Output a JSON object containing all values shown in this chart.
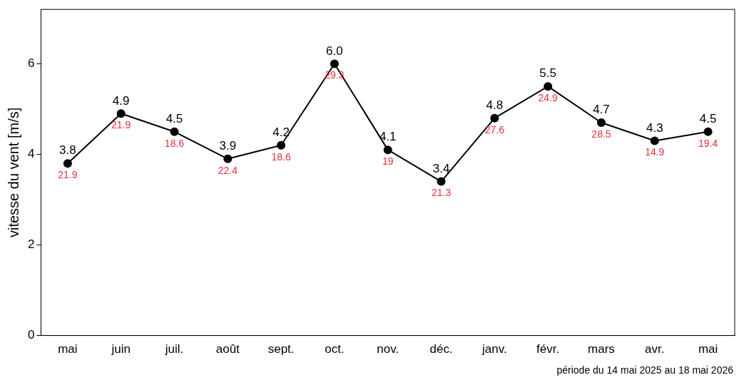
{
  "chart_data": {
    "type": "line",
    "ylabel": "vitesse du vent [m/s]",
    "categories": [
      "mai",
      "juin",
      "juil.",
      "août",
      "sept.",
      "oct.",
      "nov.",
      "déc.",
      "janv.",
      "févr.",
      "mars",
      "avr.",
      "mai"
    ],
    "series": [
      {
        "color": "#000000",
        "values": [
          3.8,
          4.9,
          4.5,
          3.9,
          4.2,
          6.0,
          4.1,
          3.4,
          4.8,
          5.5,
          4.7,
          4.3,
          4.5
        ],
        "value_labels": [
          "3.8",
          "4.9",
          "4.5",
          "3.9",
          "4.2",
          "6.0",
          "4.1",
          "3.4",
          "4.8",
          "5.5",
          "4.7",
          "4.3",
          "4.5"
        ]
      }
    ],
    "ylim": [
      0,
      7.2
    ],
    "yticks": [
      0,
      2,
      4,
      6
    ],
    "grid": false,
    "legend": false,
    "marker": "circle",
    "line_style": "solid",
    "annotations": [
      "21.9",
      "21.9",
      "18.6",
      "22.4",
      "18.6",
      "29.3",
      "19",
      "21.3",
      "27.6",
      "24.9",
      "28.5",
      "14.9",
      "19.4",
      "période  du  14 mai 2025  au  18 mai 2026"
    ]
  }
}
